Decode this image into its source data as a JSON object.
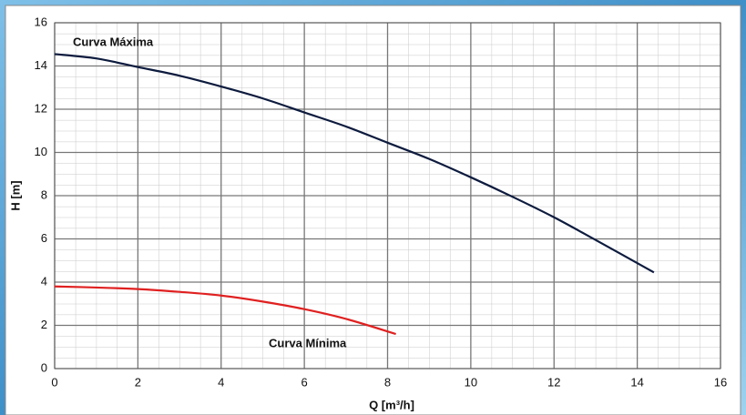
{
  "chart_data": {
    "type": "line",
    "x_label": "Q [m³/h]",
    "y_label": "H [m]",
    "xlim": [
      0,
      16
    ],
    "xticks": [
      0,
      2,
      4,
      6,
      8,
      10,
      12,
      14,
      16
    ],
    "ylim": [
      0,
      16
    ],
    "yticks": [
      0,
      2,
      4,
      6,
      8,
      10,
      12,
      14,
      16
    ],
    "grid": true,
    "series": [
      {
        "name": "Curva Máxima",
        "color": "#0d1b3e",
        "x": [
          0,
          1,
          2,
          3,
          4,
          5,
          6,
          7,
          8,
          9,
          10,
          11,
          12,
          13,
          14.4
        ],
        "values": [
          14.55,
          14.35,
          13.95,
          13.55,
          13.05,
          12.5,
          11.85,
          11.2,
          10.45,
          9.7,
          8.85,
          7.95,
          7.0,
          5.95,
          4.45
        ]
      },
      {
        "name": "Curva Mínima",
        "color": "#e02020",
        "x": [
          0,
          1,
          2,
          3,
          4,
          5,
          6,
          7,
          8.2
        ],
        "values": [
          3.8,
          3.75,
          3.68,
          3.55,
          3.38,
          3.1,
          2.75,
          2.3,
          1.6
        ]
      }
    ]
  }
}
